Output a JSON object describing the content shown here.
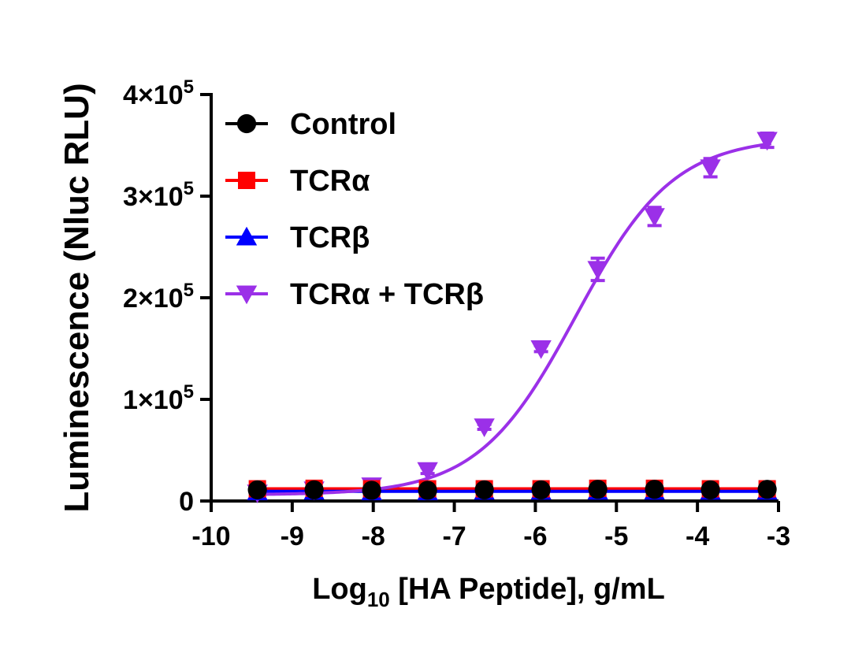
{
  "chart_data": {
    "type": "scatter",
    "title": "",
    "xlabel": {
      "prefix": "Log",
      "subscript": "10",
      "suffix": " [HA Peptide], g/mL"
    },
    "ylabel": "Luminescence (Nluc RLU)",
    "xlim": [
      -10,
      -3
    ],
    "ylim": [
      0,
      400000
    ],
    "x_ticks": [
      -10,
      -9,
      -8,
      -7,
      -6,
      -5,
      -4,
      -3
    ],
    "x_tick_labels": [
      "-10",
      "-9",
      "-8",
      "-7",
      "-6",
      "-5",
      "-4",
      "-3"
    ],
    "y_ticks": [
      0,
      100000,
      200000,
      300000,
      400000
    ],
    "y_tick_labels": [
      {
        "mant": "0",
        "exp": ""
      },
      {
        "mant": "1×10",
        "exp": "5"
      },
      {
        "mant": "2×10",
        "exp": "5"
      },
      {
        "mant": "3×10",
        "exp": "5"
      },
      {
        "mant": "4×10",
        "exp": "5"
      }
    ],
    "legend_position": "top-left",
    "x": [
      -9.43,
      -8.73,
      -8.02,
      -7.33,
      -6.63,
      -5.93,
      -5.23,
      -4.53,
      -3.84,
      -3.14
    ],
    "series": [
      {
        "name": "Control",
        "color": "#000000",
        "marker": "circle",
        "values": [
          11000,
          11000,
          10500,
          10500,
          11000,
          11000,
          11500,
          11500,
          11000,
          11500
        ],
        "fit": {
          "bottom": 11000,
          "top": 11000,
          "logEC50": -5.5,
          "hill": 1
        }
      },
      {
        "name": "TCRα",
        "color": "#ff0000",
        "marker": "square",
        "values": [
          12000,
          12500,
          12000,
          12000,
          12000,
          12000,
          12500,
          12500,
          12000,
          12000
        ],
        "fit": {
          "bottom": 12000,
          "top": 12000,
          "logEC50": -5.5,
          "hill": 1
        }
      },
      {
        "name": "TCRβ",
        "color": "#0000ff",
        "marker": "triangle-up",
        "values": [
          9000,
          9500,
          9000,
          9000,
          9500,
          9500,
          9500,
          9500,
          9500,
          9500
        ],
        "fit": {
          "bottom": 9500,
          "top": 9500,
          "logEC50": -5.5,
          "hill": 1
        }
      },
      {
        "name": "TCRα + TCRβ",
        "color": "#9b30e8",
        "marker": "triangle-down",
        "values": [
          8000,
          11000,
          15000,
          30000,
          73000,
          150000,
          228000,
          280000,
          328000,
          355000
        ],
        "errors": [
          0,
          0,
          2000,
          3000,
          2500,
          3000,
          11000,
          9000,
          9000,
          7000
        ],
        "fit": {
          "bottom": 6000,
          "top": 358000,
          "logEC50": -5.5,
          "hill": 0.72
        }
      }
    ]
  }
}
